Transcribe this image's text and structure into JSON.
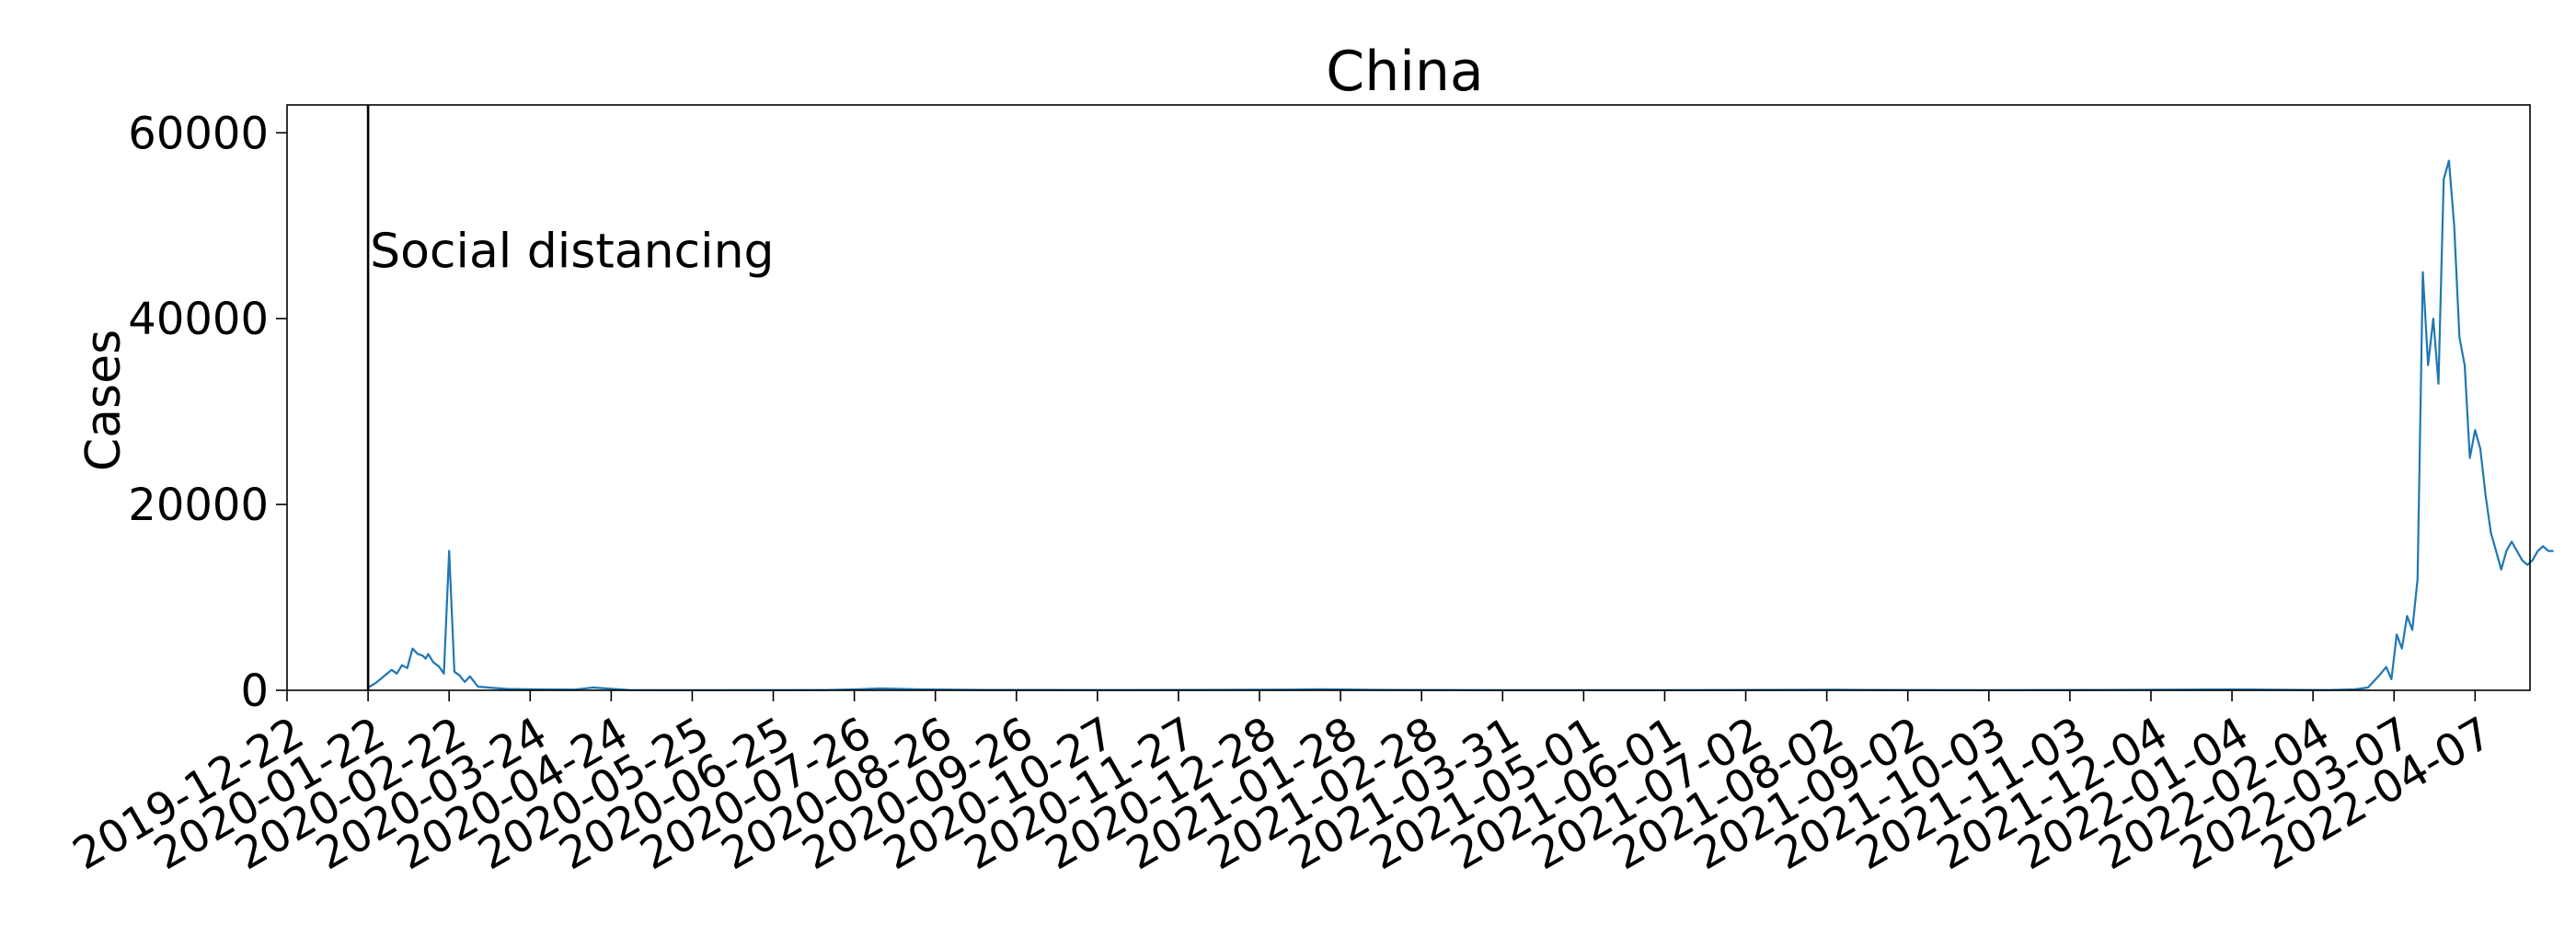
{
  "chart_data": {
    "type": "line",
    "title": "China",
    "xlabel": "",
    "ylabel": "Cases",
    "ylim": [
      0,
      63000
    ],
    "yticks": [
      0,
      20000,
      40000,
      60000
    ],
    "yticklabels": [
      "0",
      "20000",
      "40000",
      "60000"
    ],
    "xlim": [
      "2019-12-22",
      "2022-04-28"
    ],
    "xticks": [
      "2019-12-22",
      "2020-01-22",
      "2020-02-22",
      "2020-03-24",
      "2020-04-24",
      "2020-05-25",
      "2020-06-25",
      "2020-07-26",
      "2020-08-26",
      "2020-09-26",
      "2020-10-27",
      "2020-11-27",
      "2020-12-28",
      "2021-01-28",
      "2021-02-28",
      "2021-03-31",
      "2021-05-01",
      "2021-06-01",
      "2021-07-02",
      "2021-08-02",
      "2021-09-02",
      "2021-10-03",
      "2021-11-03",
      "2021-12-04",
      "2022-01-04",
      "2022-02-04",
      "2022-03-07",
      "2022-04-07"
    ],
    "grid": false,
    "annotations": [
      {
        "type": "vline",
        "x": "2020-01-22",
        "text": "Social distancing",
        "y": 48000,
        "color": "#000000"
      }
    ],
    "series": [
      {
        "color": "#1f77b4",
        "x": [
          "2020-01-22",
          "2020-01-25",
          "2020-01-28",
          "2020-01-31",
          "2020-02-02",
          "2020-02-04",
          "2020-02-06",
          "2020-02-08",
          "2020-02-10",
          "2020-02-12",
          "2020-02-13",
          "2020-02-14",
          "2020-02-16",
          "2020-02-18",
          "2020-02-20",
          "2020-02-22",
          "2020-02-24",
          "2020-02-26",
          "2020-02-28",
          "2020-03-01",
          "2020-03-04",
          "2020-03-08",
          "2020-03-15",
          "2020-03-25",
          "2020-04-10",
          "2020-04-17",
          "2020-05-01",
          "2020-06-01",
          "2020-07-15",
          "2020-07-28",
          "2020-08-05",
          "2020-08-20",
          "2020-09-15",
          "2020-11-01",
          "2020-12-15",
          "2021-01-10",
          "2021-01-20",
          "2021-02-10",
          "2021-04-01",
          "2021-06-01",
          "2021-08-05",
          "2021-08-20",
          "2021-10-01",
          "2021-11-10",
          "2021-12-20",
          "2022-01-10",
          "2022-01-20",
          "2022-02-01",
          "2022-02-10",
          "2022-02-20",
          "2022-02-25",
          "2022-03-01",
          "2022-03-04",
          "2022-03-06",
          "2022-03-08",
          "2022-03-10",
          "2022-03-12",
          "2022-03-14",
          "2022-03-16",
          "2022-03-18",
          "2022-03-20",
          "2022-03-22",
          "2022-03-24",
          "2022-03-26",
          "2022-03-28",
          "2022-03-30",
          "2022-04-01",
          "2022-04-03",
          "2022-04-05",
          "2022-04-07",
          "2022-04-09",
          "2022-04-11",
          "2022-04-13",
          "2022-04-15",
          "2022-04-17",
          "2022-04-19",
          "2022-04-21",
          "2022-04-23",
          "2022-04-25",
          "2022-04-27",
          "2022-04-29",
          "2022-05-01",
          "2022-05-03",
          "2022-05-05",
          "2022-05-07"
        ],
        "values": [
          300,
          800,
          1500,
          2200,
          1800,
          2700,
          2400,
          4500,
          3900,
          3700,
          3400,
          3900,
          3000,
          2600,
          1800,
          15000,
          2000,
          1600,
          900,
          1500,
          400,
          300,
          150,
          100,
          80,
          300,
          30,
          20,
          30,
          120,
          200,
          100,
          40,
          30,
          50,
          80,
          120,
          50,
          20,
          20,
          60,
          40,
          20,
          40,
          80,
          90,
          60,
          40,
          30,
          100,
          300,
          1500,
          2500,
          1200,
          6000,
          4500,
          8000,
          6500,
          12000,
          45000,
          35000,
          40000,
          33000,
          55000,
          57000,
          50000,
          38000,
          35000,
          25000,
          28000,
          26000,
          21000,
          17000,
          15000,
          13000,
          15000,
          16000,
          15000,
          14000,
          13500,
          14000,
          15000,
          15500,
          15000,
          15000
        ]
      }
    ]
  }
}
